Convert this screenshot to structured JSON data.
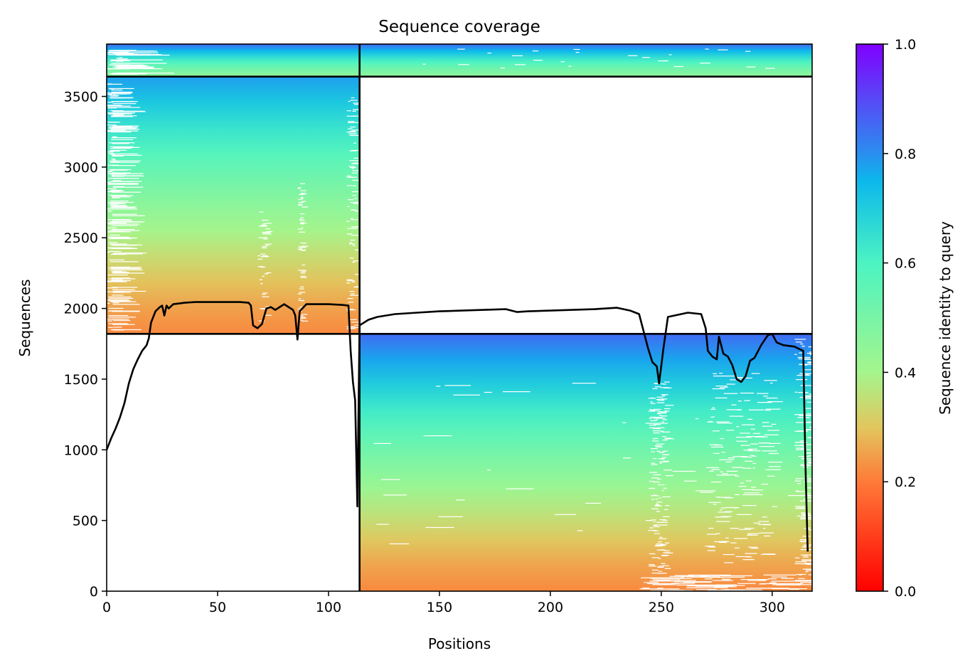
{
  "chart_data": {
    "type": "heatmap",
    "title": "Sequence coverage",
    "xlabel": "Positions",
    "ylabel": "Sequences",
    "xlim": [
      0,
      318
    ],
    "ylim": [
      0,
      3870
    ],
    "xticks": [
      0,
      50,
      100,
      150,
      200,
      250,
      300
    ],
    "yticks": [
      0,
      500,
      1000,
      1500,
      2000,
      2500,
      3000,
      3500
    ],
    "colorbar": {
      "label": "Sequence identity to query",
      "range": [
        0,
        1
      ],
      "ticks": [
        0.0,
        0.2,
        0.4,
        0.6,
        0.8,
        1.0
      ],
      "tick_labels": [
        "0.0",
        "0.2",
        "0.4",
        "0.6",
        "0.8",
        "1.0"
      ],
      "colormap": "rainbow (red → orange → yellow-green → cyan → blue → violet)"
    },
    "blocks": [
      {
        "x": [
          0,
          114
        ],
        "y": [
          1820,
          3640
        ],
        "identity": [
          0.22,
          0.78
        ]
      },
      {
        "x": [
          114,
          318
        ],
        "y": [
          0,
          1820
        ],
        "identity": [
          0.22,
          0.85
        ]
      },
      {
        "x": [
          0,
          318
        ],
        "y": [
          3640,
          3870
        ],
        "identity": [
          0.45,
          0.85
        ]
      }
    ],
    "dividers": {
      "vertical_x": 114,
      "horizontal_y": [
        1820,
        3640
      ]
    },
    "coverage_line": [
      [
        0,
        1000
      ],
      [
        2,
        1080
      ],
      [
        4,
        1150
      ],
      [
        6,
        1230
      ],
      [
        8,
        1330
      ],
      [
        10,
        1470
      ],
      [
        12,
        1570
      ],
      [
        14,
        1640
      ],
      [
        16,
        1700
      ],
      [
        18,
        1740
      ],
      [
        19,
        1790
      ],
      [
        20,
        1900
      ],
      [
        22,
        1980
      ],
      [
        24,
        2010
      ],
      [
        25,
        2020
      ],
      [
        26,
        1950
      ],
      [
        27,
        2020
      ],
      [
        28,
        2000
      ],
      [
        30,
        2030
      ],
      [
        35,
        2040
      ],
      [
        40,
        2045
      ],
      [
        50,
        2045
      ],
      [
        60,
        2045
      ],
      [
        64,
        2040
      ],
      [
        65,
        2020
      ],
      [
        66,
        1880
      ],
      [
        68,
        1860
      ],
      [
        70,
        1890
      ],
      [
        72,
        2000
      ],
      [
        74,
        2010
      ],
      [
        76,
        1990
      ],
      [
        78,
        2010
      ],
      [
        80,
        2030
      ],
      [
        82,
        2010
      ],
      [
        84,
        1990
      ],
      [
        85,
        1950
      ],
      [
        86,
        1780
      ],
      [
        87,
        1980
      ],
      [
        90,
        2030
      ],
      [
        94,
        2030
      ],
      [
        100,
        2030
      ],
      [
        106,
        2025
      ],
      [
        109,
        2020
      ],
      [
        110,
        1700
      ],
      [
        111,
        1480
      ],
      [
        112,
        1350
      ],
      [
        113,
        600
      ],
      [
        114,
        1880
      ],
      [
        118,
        1920
      ],
      [
        122,
        1940
      ],
      [
        130,
        1960
      ],
      [
        140,
        1970
      ],
      [
        150,
        1980
      ],
      [
        160,
        1985
      ],
      [
        170,
        1990
      ],
      [
        180,
        1995
      ],
      [
        185,
        1975
      ],
      [
        190,
        1980
      ],
      [
        200,
        1985
      ],
      [
        210,
        1990
      ],
      [
        220,
        1995
      ],
      [
        230,
        2005
      ],
      [
        236,
        1985
      ],
      [
        240,
        1960
      ],
      [
        244,
        1720
      ],
      [
        246,
        1620
      ],
      [
        248,
        1590
      ],
      [
        249,
        1470
      ],
      [
        251,
        1720
      ],
      [
        253,
        1940
      ],
      [
        256,
        1950
      ],
      [
        262,
        1970
      ],
      [
        268,
        1960
      ],
      [
        270,
        1860
      ],
      [
        271,
        1700
      ],
      [
        273,
        1660
      ],
      [
        275,
        1640
      ],
      [
        276,
        1800
      ],
      [
        278,
        1680
      ],
      [
        280,
        1660
      ],
      [
        282,
        1600
      ],
      [
        284,
        1500
      ],
      [
        286,
        1480
      ],
      [
        288,
        1520
      ],
      [
        290,
        1630
      ],
      [
        292,
        1650
      ],
      [
        295,
        1740
      ],
      [
        298,
        1810
      ],
      [
        300,
        1820
      ],
      [
        302,
        1760
      ],
      [
        305,
        1740
      ],
      [
        310,
        1730
      ],
      [
        314,
        1700
      ],
      [
        315,
        900
      ],
      [
        316,
        280
      ]
    ]
  }
}
